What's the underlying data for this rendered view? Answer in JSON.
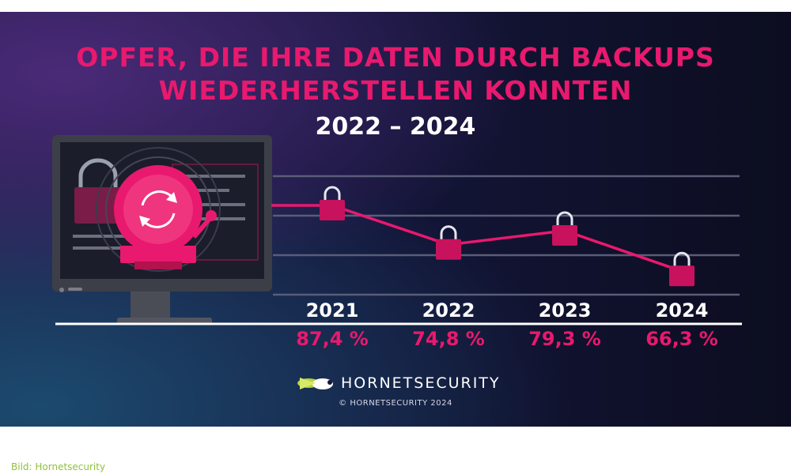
{
  "header": {
    "title_line1": "OPFER, DIE IHRE DATEN DURCH BACKUPS",
    "title_line2": "WIEDERHERSTELLEN KONNTEN",
    "subtitle": "2022 – 2024"
  },
  "chart_data": {
    "type": "line",
    "categories": [
      "2021",
      "2022",
      "2023",
      "2024"
    ],
    "values": [
      87.4,
      74.8,
      79.3,
      66.3
    ],
    "value_labels": [
      "87,4 %",
      "74,8 %",
      "79,3 %",
      "66,3 %"
    ],
    "title": "OPFER, DIE IHRE DATEN DURCH BACKUPS WIEDERHERSTELLEN KONNTEN",
    "subtitle": "2022 – 2024",
    "ylim": [
      57,
      95
    ],
    "grid": true,
    "marker": "padlock-icon",
    "colors": {
      "line": "#e8196e",
      "grid": "#5a5d78",
      "labels": "#ffffff"
    }
  },
  "footer": {
    "brand": "HORNETSECURITY",
    "copyright": "© HORNETSECURITY 2024"
  },
  "caption": "Bild: Hornetsecurity",
  "colors": {
    "accent": "#e8196e",
    "background": "#14163a",
    "brand_green": "#b6d43c"
  }
}
